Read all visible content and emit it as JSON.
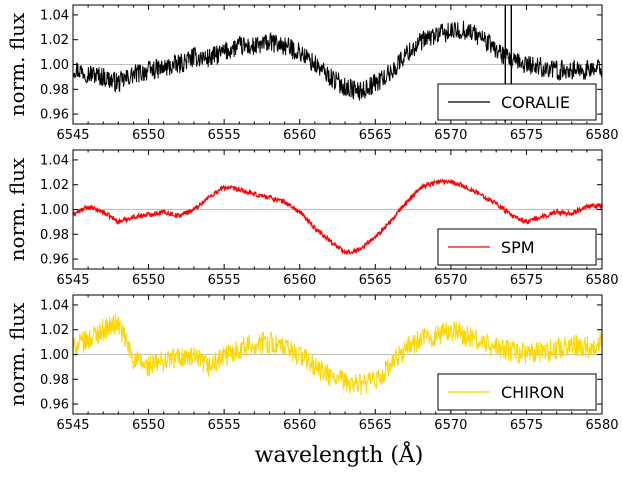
{
  "xlabel": "wavelength (Å)",
  "ylabel": "norm. flux",
  "colors": {
    "CORALIE": "#000000",
    "SPM": "#ff0000",
    "CHIRON": "#ffd700",
    "refline": "#c0c0c0"
  },
  "chart_data": [
    {
      "type": "line",
      "legend": "CORALIE",
      "legend_position": "lower-right",
      "xlim": [
        6545,
        6580
      ],
      "ylim": [
        0.952,
        1.048
      ],
      "xticks": [
        6545,
        6550,
        6555,
        6560,
        6565,
        6570,
        6575,
        6580
      ],
      "yticks": [
        "0.96",
        "0.98",
        "1.00",
        "1.02",
        "1.04"
      ],
      "reference_line": 1.0,
      "series": [
        {
          "name": "CORALIE",
          "noise": 0.008,
          "x": [
            6545,
            6546,
            6547,
            6548,
            6549,
            6550,
            6551,
            6552,
            6553,
            6554,
            6555,
            6556,
            6557,
            6558,
            6559,
            6560,
            6561,
            6562,
            6563,
            6564,
            6565,
            6566,
            6567,
            6568,
            6569,
            6570,
            6571,
            6572,
            6573,
            6574,
            6575,
            6576,
            6577,
            6578,
            6579,
            6580
          ],
          "y": [
            0.997,
            0.993,
            0.99,
            0.985,
            0.992,
            0.995,
            0.997,
            1.0,
            1.006,
            1.005,
            1.01,
            1.015,
            1.014,
            1.018,
            1.015,
            1.01,
            1.0,
            0.99,
            0.982,
            0.978,
            0.985,
            0.993,
            1.008,
            1.018,
            1.024,
            1.026,
            1.028,
            1.022,
            1.012,
            1.002,
            1.0,
            0.998,
            0.995,
            0.996,
            0.995,
            0.997
          ],
          "spikes": [
            {
              "x": 6573.6,
              "min": 0.953,
              "max": 1.048
            },
            {
              "x": 6574.0,
              "min": 0.955,
              "max": 1.048
            }
          ]
        }
      ]
    },
    {
      "type": "line",
      "legend": "SPM",
      "legend_position": "lower-right",
      "xlim": [
        6545,
        6580
      ],
      "ylim": [
        0.952,
        1.048
      ],
      "xticks": [
        6545,
        6550,
        6555,
        6560,
        6565,
        6570,
        6575,
        6580
      ],
      "yticks": [
        "0.96",
        "0.98",
        "1.00",
        "1.02",
        "1.04"
      ],
      "reference_line": 1.0,
      "series": [
        {
          "name": "SPM",
          "noise": 0.002,
          "x": [
            6545,
            6546,
            6547,
            6548,
            6549,
            6550,
            6551,
            6552,
            6553,
            6554,
            6555,
            6556,
            6557,
            6558,
            6559,
            6560,
            6561,
            6562,
            6563,
            6564,
            6565,
            6566,
            6567,
            6568,
            6569,
            6570,
            6571,
            6572,
            6573,
            6574,
            6575,
            6576,
            6577,
            6578,
            6579,
            6580
          ],
          "y": [
            0.996,
            1.002,
            0.998,
            0.99,
            0.994,
            0.996,
            0.998,
            0.995,
            1.0,
            1.01,
            1.018,
            1.016,
            1.012,
            1.01,
            1.006,
            0.998,
            0.985,
            0.975,
            0.965,
            0.968,
            0.978,
            0.99,
            1.005,
            1.018,
            1.022,
            1.023,
            1.018,
            1.012,
            1.005,
            0.995,
            0.99,
            0.994,
            0.998,
            0.997,
            1.002,
            1.003
          ]
        }
      ]
    },
    {
      "type": "line",
      "legend": "CHIRON",
      "legend_position": "lower-right",
      "xlim": [
        6545,
        6580
      ],
      "ylim": [
        0.952,
        1.048
      ],
      "xticks": [
        6545,
        6550,
        6555,
        6560,
        6565,
        6570,
        6575,
        6580
      ],
      "yticks": [
        "0.96",
        "0.98",
        "1.00",
        "1.02",
        "1.04"
      ],
      "reference_line": 1.0,
      "series": [
        {
          "name": "CHIRON",
          "noise": 0.009,
          "x": [
            6545,
            6546,
            6547,
            6548,
            6549,
            6550,
            6551,
            6552,
            6553,
            6554,
            6555,
            6556,
            6557,
            6558,
            6559,
            6560,
            6561,
            6562,
            6563,
            6564,
            6565,
            6566,
            6567,
            6568,
            6569,
            6570,
            6571,
            6572,
            6573,
            6574,
            6575,
            6576,
            6577,
            6578,
            6579,
            6580
          ],
          "y": [
            1.005,
            1.012,
            1.02,
            1.025,
            0.996,
            0.99,
            0.995,
            0.998,
            0.997,
            0.99,
            0.998,
            1.005,
            1.008,
            1.01,
            1.005,
            1.0,
            0.99,
            0.982,
            0.978,
            0.976,
            0.978,
            0.99,
            1.005,
            1.012,
            1.015,
            1.02,
            1.015,
            1.01,
            1.005,
            1.003,
            1.0,
            1.002,
            1.005,
            1.008,
            1.006,
            1.01
          ]
        }
      ]
    }
  ]
}
